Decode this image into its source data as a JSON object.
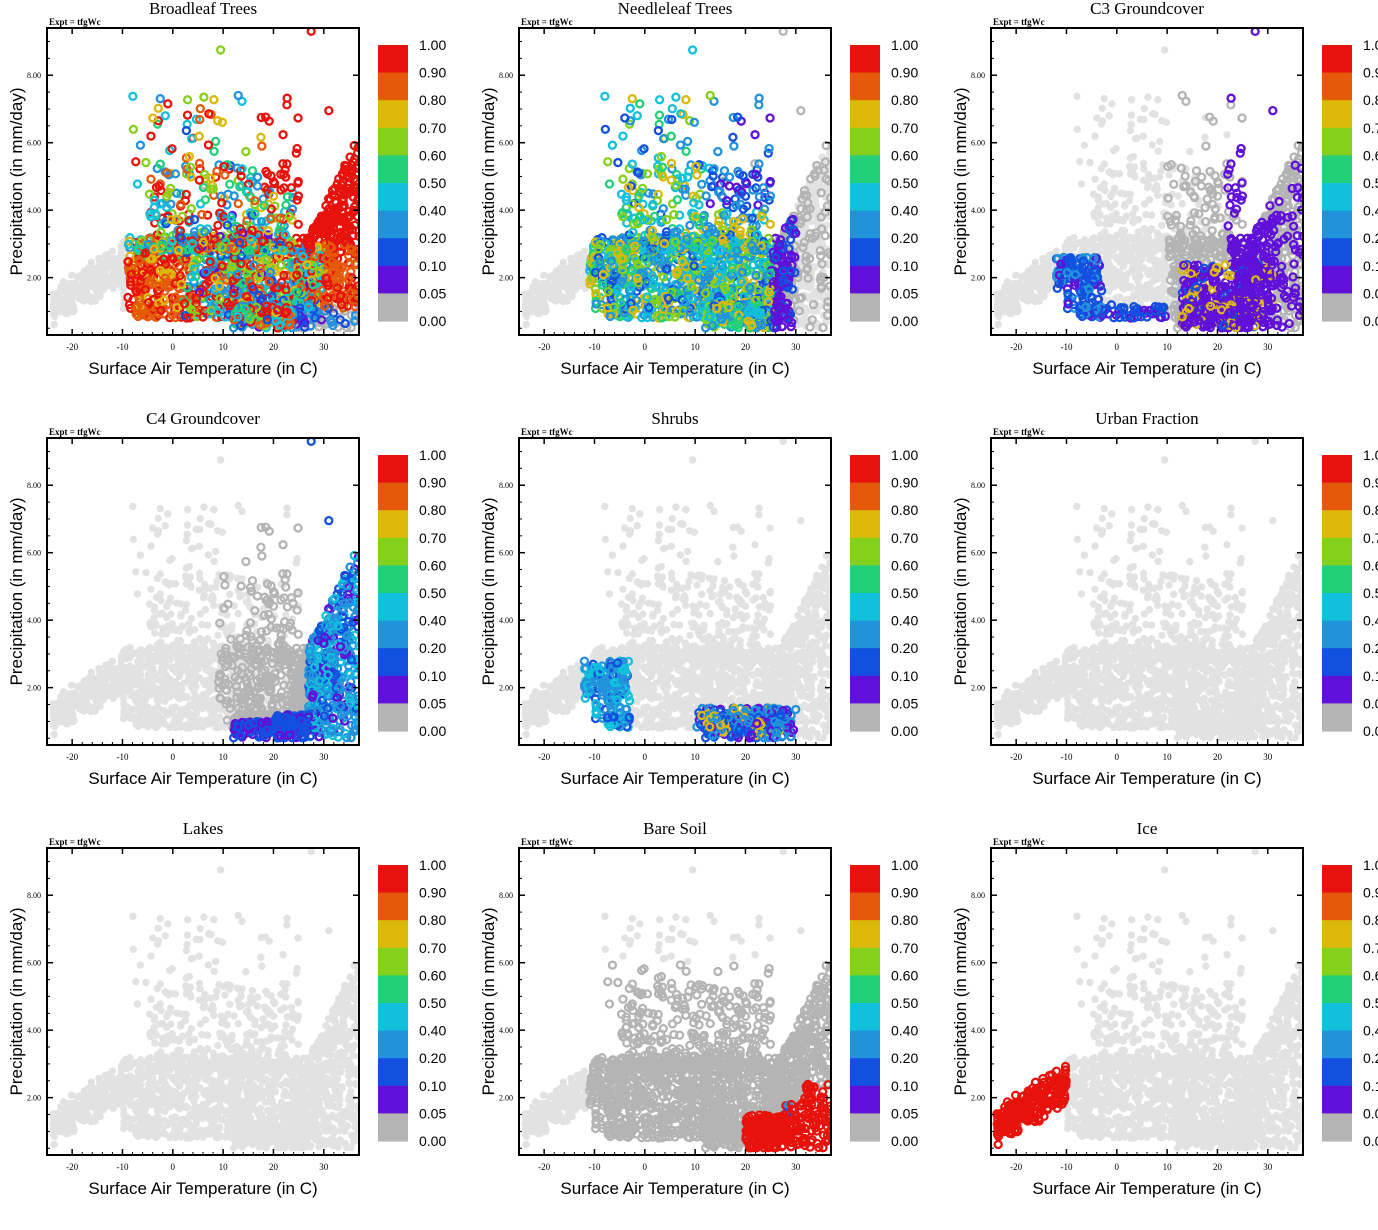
{
  "figure": {
    "expt_label": "Expt = tfgWc",
    "xlabel": "Surface Air Temperature (in C)",
    "ylabel": "Precipitation (in mm/day)",
    "x_ticks": [
      -20,
      -10,
      0,
      10,
      20,
      30
    ],
    "y_ticks": [
      "2.00",
      "4.00",
      "6.00",
      "8.00"
    ],
    "colorbar_labels": [
      "1.00",
      "0.90",
      "0.80",
      "0.70",
      "0.60",
      "0.50",
      "0.40",
      "0.20",
      "0.10",
      "0.05",
      "0.00"
    ],
    "colorbar_colors": [
      "#e8120c",
      "#e55a0a",
      "#dcb80a",
      "#84d01a",
      "#22d07a",
      "#10c0dc",
      "#2292dc",
      "#1250e0",
      "#6010d8",
      "#b4b4b4"
    ],
    "background_point_color": "#e2e2e2"
  },
  "chart_data": [
    {
      "type": "scatter",
      "title": "Broadleaf Trees",
      "xlim": [
        -25,
        37
      ],
      "ylim": [
        0.3,
        9.4
      ],
      "highlight": "broadleaf"
    },
    {
      "type": "scatter",
      "title": "Needleleaf Trees",
      "xlim": [
        -25,
        37
      ],
      "ylim": [
        0.3,
        9.4
      ],
      "highlight": "needleleaf"
    },
    {
      "type": "scatter",
      "title": "C3 Groundcover",
      "xlim": [
        -25,
        37
      ],
      "ylim": [
        0.3,
        9.4
      ],
      "highlight": "c3"
    },
    {
      "type": "scatter",
      "title": "C4 Groundcover",
      "xlim": [
        -25,
        37
      ],
      "ylim": [
        0.3,
        9.4
      ],
      "highlight": "c4"
    },
    {
      "type": "scatter",
      "title": "Shrubs",
      "xlim": [
        -25,
        37
      ],
      "ylim": [
        0.3,
        9.4
      ],
      "highlight": "shrubs"
    },
    {
      "type": "scatter",
      "title": "Urban Fraction",
      "xlim": [
        -25,
        37
      ],
      "ylim": [
        0.3,
        9.4
      ],
      "highlight": "none"
    },
    {
      "type": "scatter",
      "title": "Lakes",
      "xlim": [
        -25,
        37
      ],
      "ylim": [
        0.3,
        9.4
      ],
      "highlight": "none"
    },
    {
      "type": "scatter",
      "title": "Bare Soil",
      "xlim": [
        -25,
        37
      ],
      "ylim": [
        0.3,
        9.4
      ],
      "highlight": "baresoil"
    },
    {
      "type": "scatter",
      "title": "Ice",
      "xlim": [
        -25,
        37
      ],
      "ylim": [
        0.3,
        9.4
      ],
      "highlight": "ice"
    }
  ]
}
